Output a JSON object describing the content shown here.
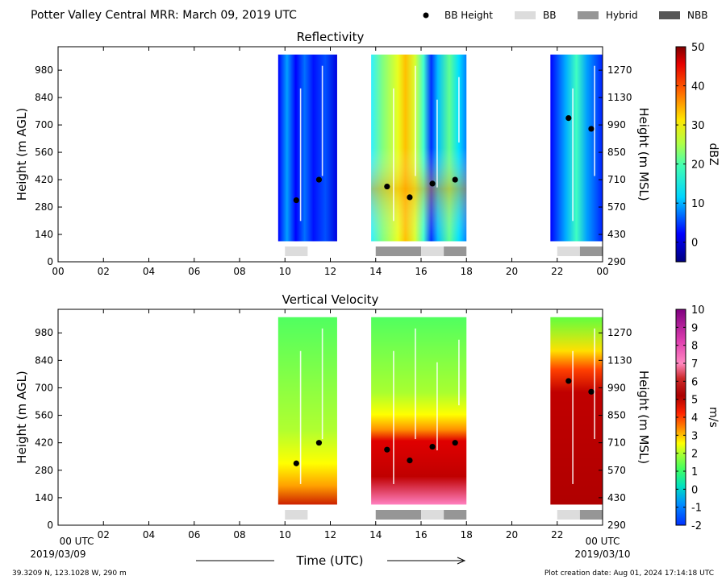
{
  "header": {
    "title": "Potter Valley Central MRR:  March 09, 2019 UTC",
    "legend": [
      {
        "label": "BB Height",
        "kind": "dot",
        "color": "#000000"
      },
      {
        "label": "BB",
        "kind": "box",
        "color": "#dcdcdc"
      },
      {
        "label": "Hybrid",
        "kind": "box",
        "color": "#969696"
      },
      {
        "label": "NBB",
        "kind": "box",
        "color": "#555555"
      }
    ]
  },
  "footer": {
    "location": "39.3209 N, 123.1028 W, 290 m",
    "creation": "Plot creation date: Aug 01, 2024 17:14:18 UTC",
    "xlabel": "Time (UTC)",
    "start_tick": "00 UTC",
    "start_date": "2019/03/09",
    "end_tick": "00 UTC",
    "end_date": "2019/03/10"
  },
  "chart_data": [
    {
      "type": "heatmap",
      "title": "Reflectivity",
      "ylabel": "Height (m AGL)",
      "ylabel_right": "Height (m MSL)",
      "x_ticks": [
        "00",
        "02",
        "04",
        "06",
        "08",
        "10",
        "12",
        "14",
        "16",
        "18",
        "20",
        "22",
        "00"
      ],
      "xlim": [
        0,
        24
      ],
      "ylim": [
        0,
        1100
      ],
      "y_ticks": [
        0,
        140,
        280,
        420,
        560,
        700,
        840,
        980
      ],
      "y_ticks_right": [
        290,
        430,
        570,
        710,
        850,
        990,
        1130,
        1270
      ],
      "colorbar": {
        "label": "dBZ",
        "min": -5,
        "max": 50,
        "ticks": [
          0,
          10,
          20,
          30,
          40,
          50
        ]
      },
      "bb_height": [
        {
          "x": 10.5,
          "y": 315
        },
        {
          "x": 11.5,
          "y": 420
        },
        {
          "x": 14.5,
          "y": 385
        },
        {
          "x": 15.5,
          "y": 330
        },
        {
          "x": 16.5,
          "y": 400
        },
        {
          "x": 17.5,
          "y": 420
        },
        {
          "x": 22.5,
          "y": 735
        },
        {
          "x": 23.5,
          "y": 680
        }
      ],
      "bb_type_bar": [
        {
          "start": 10.0,
          "end": 11.0,
          "type": "BB"
        },
        {
          "start": 14.0,
          "end": 16.0,
          "type": "Hybrid"
        },
        {
          "start": 16.0,
          "end": 17.0,
          "type": "BB"
        },
        {
          "start": 17.0,
          "end": 18.0,
          "type": "Hybrid"
        },
        {
          "start": 22.0,
          "end": 23.0,
          "type": "BB"
        },
        {
          "start": 23.0,
          "end": 24.0,
          "type": "Hybrid"
        }
      ],
      "echo_periods": [
        {
          "start": 9.7,
          "end": 12.3,
          "top": 1060,
          "bottom": 105
        },
        {
          "start": 13.8,
          "end": 18.0,
          "top": 1060,
          "bottom": 105
        },
        {
          "start": 21.7,
          "end": 24.0,
          "top": 1060,
          "bottom": 105
        }
      ]
    },
    {
      "type": "heatmap",
      "title": "Vertical Velocity",
      "ylabel": "Height (m AGL)",
      "ylabel_right": "Height (m MSL)",
      "x_ticks": [
        "00",
        "02",
        "04",
        "06",
        "08",
        "10",
        "12",
        "14",
        "16",
        "18",
        "20",
        "22",
        "00"
      ],
      "xlim": [
        0,
        24
      ],
      "ylim": [
        0,
        1100
      ],
      "y_ticks": [
        0,
        140,
        280,
        420,
        560,
        700,
        840,
        980
      ],
      "y_ticks_right": [
        290,
        430,
        570,
        710,
        850,
        990,
        1130,
        1270
      ],
      "colorbar": {
        "label": "m/s",
        "min": -2,
        "max": 10,
        "ticks": [
          -2,
          -1,
          0,
          1,
          2,
          3,
          4,
          5,
          6,
          7,
          8,
          9,
          10
        ]
      },
      "bb_height": [
        {
          "x": 10.5,
          "y": 315
        },
        {
          "x": 11.5,
          "y": 420
        },
        {
          "x": 14.5,
          "y": 385
        },
        {
          "x": 15.5,
          "y": 330
        },
        {
          "x": 16.5,
          "y": 400
        },
        {
          "x": 17.5,
          "y": 420
        },
        {
          "x": 22.5,
          "y": 735
        },
        {
          "x": 23.5,
          "y": 680
        }
      ],
      "bb_type_bar": [
        {
          "start": 10.0,
          "end": 11.0,
          "type": "BB"
        },
        {
          "start": 14.0,
          "end": 16.0,
          "type": "Hybrid"
        },
        {
          "start": 16.0,
          "end": 17.0,
          "type": "BB"
        },
        {
          "start": 17.0,
          "end": 18.0,
          "type": "Hybrid"
        },
        {
          "start": 22.0,
          "end": 23.0,
          "type": "BB"
        },
        {
          "start": 23.0,
          "end": 24.0,
          "type": "Hybrid"
        }
      ],
      "echo_periods": [
        {
          "start": 9.7,
          "end": 12.3,
          "top": 1060,
          "bottom": 105
        },
        {
          "start": 13.8,
          "end": 18.0,
          "top": 1060,
          "bottom": 105
        },
        {
          "start": 21.7,
          "end": 24.0,
          "top": 1060,
          "bottom": 105
        }
      ]
    }
  ]
}
